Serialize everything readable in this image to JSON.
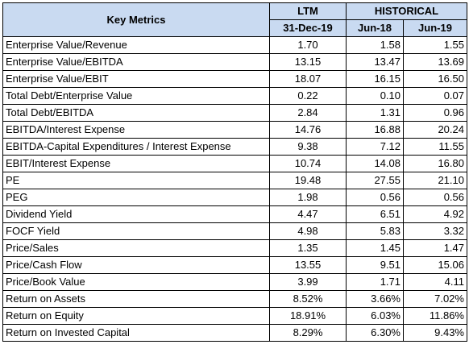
{
  "header": {
    "metric_label": "Key Metrics",
    "ltm_label": "LTM",
    "ltm_date": "31-Dec-19",
    "historical_label": "HISTORICAL",
    "hist_col1": "Jun-18",
    "hist_col2": "Jun-19"
  },
  "rows": [
    {
      "metric": "Enterprise Value/Revenue",
      "ltm": "1.70",
      "h1": "1.58",
      "h2": "1.55"
    },
    {
      "metric": "Enterprise Value/EBITDA",
      "ltm": "13.15",
      "h1": "13.47",
      "h2": "13.69"
    },
    {
      "metric": "Enterprise Value/EBIT",
      "ltm": "18.07",
      "h1": "16.15",
      "h2": "16.50"
    },
    {
      "metric": "Total Debt/Enterprise Value",
      "ltm": "0.22",
      "h1": "0.10",
      "h2": "0.07"
    },
    {
      "metric": "Total Debt/EBITDA",
      "ltm": "2.84",
      "h1": "1.31",
      "h2": "0.96"
    },
    {
      "metric": "EBITDA/Interest Expense",
      "ltm": "14.76",
      "h1": "16.88",
      "h2": "20.24"
    },
    {
      "metric": "EBITDA-Capital Expenditures / Interest Expense",
      "ltm": "9.38",
      "h1": "7.12",
      "h2": "11.55"
    },
    {
      "metric": "EBIT/Interest Expense",
      "ltm": "10.74",
      "h1": "14.08",
      "h2": "16.80"
    },
    {
      "metric": "PE",
      "ltm": "19.48",
      "h1": "27.55",
      "h2": "21.10"
    },
    {
      "metric": "PEG",
      "ltm": "1.98",
      "h1": "0.56",
      "h2": "0.56"
    },
    {
      "metric": "Dividend Yield",
      "ltm": "4.47",
      "h1": "6.51",
      "h2": "4.92"
    },
    {
      "metric": "FOCF Yield",
      "ltm": "4.98",
      "h1": "5.83",
      "h2": "3.32"
    },
    {
      "metric": "Price/Sales",
      "ltm": "1.35",
      "h1": "1.45",
      "h2": "1.47"
    },
    {
      "metric": "Price/Cash Flow",
      "ltm": "13.55",
      "h1": "9.51",
      "h2": "15.06"
    },
    {
      "metric": "Price/Book Value",
      "ltm": "3.99",
      "h1": "1.71",
      "h2": "4.11"
    },
    {
      "metric": "Return on Assets",
      "ltm": "8.52%",
      "h1": "3.66%",
      "h2": "7.02%"
    },
    {
      "metric": "Return on Equity",
      "ltm": "18.91%",
      "h1": "6.03%",
      "h2": "11.86%"
    },
    {
      "metric": "Return on Invested Capital",
      "ltm": "8.29%",
      "h1": "6.30%",
      "h2": "9.43%"
    }
  ],
  "colors": {
    "header_bg": "#c9daf1",
    "border": "#000000"
  }
}
